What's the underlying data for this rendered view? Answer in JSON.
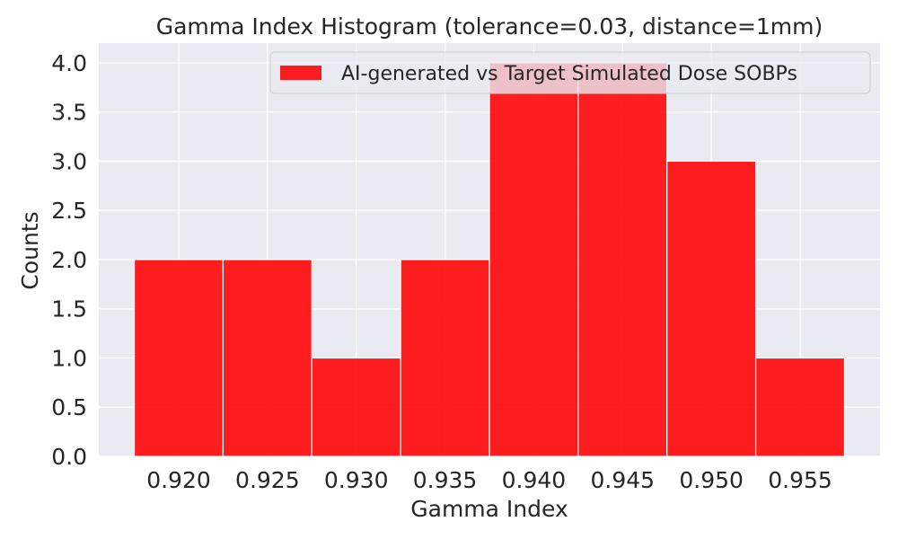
{
  "chart_data": {
    "type": "bar",
    "title": "Gamma Index Histogram (tolerance=0.03, distance=1mm)",
    "xlabel": "Gamma Index",
    "ylabel": "Counts",
    "bin_width": 0.005,
    "bin_centers": [
      0.92,
      0.925,
      0.93,
      0.935,
      0.94,
      0.945,
      0.95,
      0.955
    ],
    "categories": [
      "0.920",
      "0.925",
      "0.930",
      "0.935",
      "0.940",
      "0.945",
      "0.950",
      "0.955"
    ],
    "series": [
      {
        "name": "AI-generated vs Target Simulated Dose SOBPs",
        "values": [
          2,
          2,
          1,
          2,
          4,
          4,
          3,
          1
        ],
        "color": "#ff0000"
      }
    ],
    "xlim": [
      0.9155,
      0.9595
    ],
    "ylim": [
      0,
      4.2
    ],
    "x_ticks": [
      "0.920",
      "0.925",
      "0.930",
      "0.935",
      "0.940",
      "0.945",
      "0.950",
      "0.955"
    ],
    "y_ticks": [
      "0.0",
      "0.5",
      "1.0",
      "1.5",
      "2.0",
      "2.5",
      "3.0",
      "3.5",
      "4.0"
    ],
    "grid": true,
    "legend_position": "top-right",
    "background_color": "#eaeaf2"
  }
}
